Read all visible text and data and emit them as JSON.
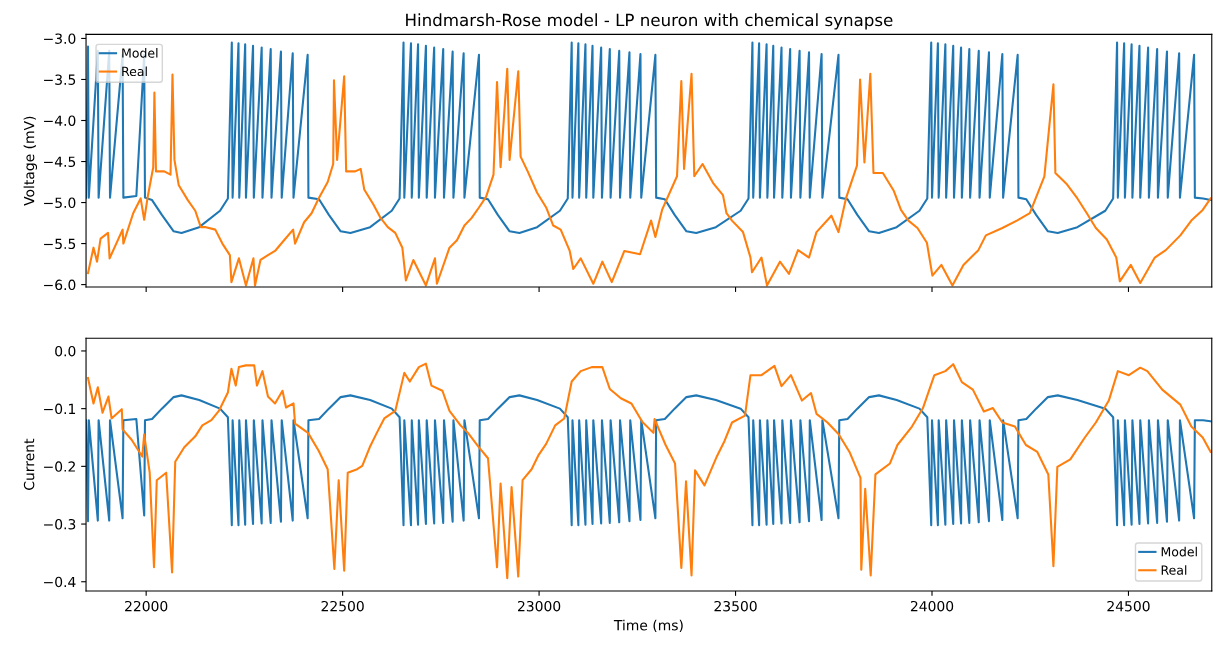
{
  "chart_data": [
    {
      "type": "line",
      "title": "Hindmarsh-Rose model - LP neuron with chemical synapse",
      "ylabel": "Voltage (mV)",
      "xlim": [
        21847,
        24712
      ],
      "xticks": [
        22000,
        22500,
        23000,
        23500,
        24000,
        24500
      ],
      "ylim": [
        -6.03,
        -2.95
      ],
      "yticks": [
        {
          "value": -6.0,
          "label": "−6.0"
        },
        {
          "value": -5.5,
          "label": "−5.5"
        },
        {
          "value": -5.0,
          "label": "−5.0"
        },
        {
          "value": -4.5,
          "label": "−4.5"
        },
        {
          "value": -4.0,
          "label": "−4.0"
        },
        {
          "value": -3.5,
          "label": "−3.5"
        },
        {
          "value": -3.0,
          "label": "−3.0"
        }
      ],
      "tick_labels": "y",
      "legend": "top left",
      "grid": false,
      "marker": "none",
      "line_style": "solid",
      "series": [
        {
          "name": "Model",
          "color": "#1f77b4",
          "x": [
            21847,
            21852,
            21854,
            21877,
            21879,
            21906,
            21908,
            21940,
            21942,
            21975,
            21995,
            21997,
            22015,
            22040,
            22070,
            22090,
            22135,
            22188,
            22208,
            22218,
            22220,
            22235,
            22237,
            22252,
            22254,
            22272,
            22274,
            22294,
            22296,
            22317,
            22319,
            22343,
            22345,
            22373,
            22375,
            22411,
            22413,
            22440,
            22465,
            22495,
            22520,
            22570,
            22625,
            22645,
            22655,
            22657,
            22674,
            22676,
            22692,
            22694,
            22712,
            22714,
            22733,
            22735,
            22756,
            22758,
            22780,
            22782,
            22808,
            22810,
            22847,
            22849,
            22870,
            22895,
            22925,
            22950,
            22995,
            23053,
            23073,
            23083,
            23085,
            23100,
            23102,
            23118,
            23120,
            23136,
            23138,
            23158,
            23160,
            23180,
            23182,
            23204,
            23206,
            23230,
            23232,
            23258,
            23260,
            23296,
            23298,
            23320,
            23345,
            23375,
            23400,
            23450,
            23513,
            23533,
            23543,
            23545,
            23560,
            23562,
            23579,
            23581,
            23596,
            23598,
            23617,
            23619,
            23639,
            23641,
            23663,
            23665,
            23687,
            23689,
            23719,
            23721,
            23762,
            23764,
            23785,
            23810,
            23840,
            23865,
            23910,
            23968,
            23988,
            23998,
            24000,
            24015,
            24017,
            24034,
            24036,
            24054,
            24056,
            24074,
            24076,
            24095,
            24097,
            24119,
            24121,
            24145,
            24147,
            24179,
            24181,
            24218,
            24220,
            24240,
            24265,
            24295,
            24320,
            24370,
            24441,
            24461,
            24471,
            24473,
            24489,
            24491,
            24508,
            24510,
            24528,
            24530,
            24550,
            24552,
            24573,
            24575,
            24598,
            24600,
            24629,
            24631,
            24667,
            24669,
            24690,
            24710
          ],
          "values": [
            -4.94,
            -3.1,
            -4.94,
            -3.15,
            -4.94,
            -3.15,
            -4.94,
            -3.2,
            -4.94,
            -4.92,
            -3.2,
            -4.94,
            -4.97,
            -5.15,
            -5.35,
            -5.37,
            -5.3,
            -5.1,
            -4.95,
            -3.05,
            -4.94,
            -3.06,
            -4.94,
            -3.07,
            -4.94,
            -3.09,
            -4.94,
            -3.11,
            -4.94,
            -3.13,
            -4.94,
            -3.16,
            -4.94,
            -3.18,
            -4.94,
            -3.2,
            -4.94,
            -4.96,
            -5.15,
            -5.35,
            -5.37,
            -5.3,
            -5.1,
            -4.95,
            -3.05,
            -4.94,
            -3.06,
            -4.94,
            -3.07,
            -4.94,
            -3.09,
            -4.94,
            -3.11,
            -4.94,
            -3.13,
            -4.94,
            -3.16,
            -4.94,
            -3.18,
            -4.94,
            -3.2,
            -4.94,
            -4.96,
            -5.15,
            -5.35,
            -5.37,
            -5.3,
            -5.1,
            -4.95,
            -3.05,
            -4.94,
            -3.06,
            -4.94,
            -3.07,
            -4.94,
            -3.09,
            -4.94,
            -3.11,
            -4.94,
            -3.13,
            -4.94,
            -3.15,
            -4.94,
            -3.17,
            -4.94,
            -3.19,
            -4.94,
            -3.2,
            -4.94,
            -4.96,
            -5.15,
            -5.35,
            -5.37,
            -5.3,
            -5.1,
            -4.95,
            -3.05,
            -4.94,
            -3.06,
            -4.94,
            -3.07,
            -4.94,
            -3.09,
            -4.94,
            -3.11,
            -4.94,
            -3.13,
            -4.94,
            -3.15,
            -4.94,
            -3.17,
            -4.94,
            -3.19,
            -4.94,
            -3.2,
            -4.94,
            -4.96,
            -5.15,
            -5.35,
            -5.37,
            -5.3,
            -5.1,
            -4.95,
            -3.05,
            -4.94,
            -3.06,
            -4.94,
            -3.07,
            -4.94,
            -3.09,
            -4.94,
            -3.11,
            -4.94,
            -3.13,
            -4.94,
            -3.15,
            -4.94,
            -3.17,
            -4.94,
            -3.19,
            -4.94,
            -3.2,
            -4.94,
            -4.96,
            -5.15,
            -5.35,
            -5.37,
            -5.3,
            -5.1,
            -4.95,
            -3.05,
            -4.94,
            -3.06,
            -4.94,
            -3.07,
            -4.94,
            -3.09,
            -4.94,
            -3.11,
            -4.94,
            -3.13,
            -4.94,
            -3.16,
            -4.94,
            -3.18,
            -4.94,
            -3.2,
            -4.94,
            -4.95,
            -4.97
          ]
        },
        {
          "name": "Real",
          "color": "#ff7f0e",
          "x": [
            21852,
            21866,
            21875,
            21884,
            21903,
            21907,
            21940,
            21942,
            21967,
            21986,
            21995,
            22004,
            22018,
            22021,
            22025,
            22046,
            22062,
            22067,
            22072,
            22083,
            22106,
            22125,
            22139,
            22152,
            22176,
            22194,
            22213,
            22217,
            22236,
            22254,
            22273,
            22277,
            22291,
            22310,
            22328,
            22351,
            22374,
            22379,
            22402,
            22421,
            22439,
            22462,
            22476,
            22478,
            22486,
            22504,
            22509,
            22532,
            22546,
            22555,
            22578,
            22597,
            22615,
            22634,
            22652,
            22661,
            22680,
            22712,
            22735,
            22740,
            22772,
            22791,
            22810,
            22828,
            22847,
            22865,
            22884,
            22893,
            22902,
            22919,
            22925,
            22947,
            22953,
            22971,
            22995,
            23018,
            23036,
            23055,
            23078,
            23087,
            23106,
            23138,
            23161,
            23185,
            23217,
            23257,
            23285,
            23296,
            23313,
            23351,
            23362,
            23369,
            23388,
            23395,
            23416,
            23444,
            23468,
            23477,
            23491,
            23519,
            23538,
            23542,
            23566,
            23580,
            23613,
            23636,
            23659,
            23687,
            23706,
            23744,
            23762,
            23781,
            23809,
            23817,
            23828,
            23843,
            23851,
            23875,
            23903,
            23921,
            23940,
            23963,
            23987,
            24001,
            24024,
            24052,
            24080,
            24118,
            24137,
            24179,
            24216,
            24249,
            24286,
            24309,
            24314,
            24342,
            24370,
            24394,
            24417,
            24445,
            24469,
            24478,
            24506,
            24530,
            24567,
            24595,
            24632,
            24660,
            24689,
            24709
          ],
          "values": [
            -5.86,
            -5.55,
            -5.72,
            -5.44,
            -5.37,
            -5.68,
            -5.33,
            -5.5,
            -5.13,
            -4.95,
            -5.21,
            -4.93,
            -4.57,
            -3.66,
            -4.62,
            -4.62,
            -4.66,
            -3.44,
            -4.48,
            -4.79,
            -4.97,
            -5.1,
            -5.3,
            -5.3,
            -5.33,
            -5.5,
            -5.64,
            -5.97,
            -5.68,
            -6.01,
            -5.68,
            -6.01,
            -5.7,
            -5.64,
            -5.59,
            -5.46,
            -5.33,
            -5.5,
            -5.24,
            -5.13,
            -4.95,
            -4.75,
            -4.53,
            -3.51,
            -4.48,
            -3.46,
            -4.62,
            -4.62,
            -4.59,
            -4.84,
            -5.02,
            -5.19,
            -5.3,
            -5.37,
            -5.55,
            -5.95,
            -5.7,
            -6.01,
            -5.68,
            -5.99,
            -5.55,
            -5.46,
            -5.28,
            -5.19,
            -5.06,
            -4.93,
            -4.66,
            -3.53,
            -4.57,
            -3.37,
            -4.48,
            -3.4,
            -4.44,
            -4.62,
            -4.88,
            -5.06,
            -5.28,
            -5.33,
            -5.59,
            -5.81,
            -5.68,
            -5.99,
            -5.72,
            -5.97,
            -5.59,
            -5.63,
            -5.22,
            -5.42,
            -5.09,
            -4.68,
            -3.52,
            -4.59,
            -3.43,
            -4.68,
            -4.53,
            -4.77,
            -4.91,
            -5.13,
            -5.22,
            -5.36,
            -5.67,
            -5.85,
            -5.67,
            -6.01,
            -5.72,
            -5.87,
            -5.58,
            -5.67,
            -5.36,
            -5.16,
            -5.36,
            -4.95,
            -4.55,
            -3.5,
            -4.51,
            -3.43,
            -4.64,
            -4.64,
            -4.86,
            -5.09,
            -5.22,
            -5.31,
            -5.49,
            -5.89,
            -5.76,
            -6.01,
            -5.76,
            -5.58,
            -5.4,
            -5.31,
            -5.22,
            -5.13,
            -4.68,
            -3.56,
            -4.64,
            -4.77,
            -4.95,
            -5.13,
            -5.31,
            -5.45,
            -5.67,
            -5.96,
            -5.76,
            -5.98,
            -5.67,
            -5.58,
            -5.4,
            -5.22,
            -5.09,
            -4.95
          ]
        }
      ]
    },
    {
      "type": "line",
      "xlabel": "Time (ms)",
      "ylabel": "Current",
      "xlim": [
        21847,
        24712
      ],
      "xticks": [
        22000,
        22500,
        23000,
        23500,
        24000,
        24500
      ],
      "ylim": [
        -0.416,
        0.022
      ],
      "yticks": [
        {
          "value": -0.4,
          "label": "−0.4"
        },
        {
          "value": -0.3,
          "label": "−0.3"
        },
        {
          "value": -0.2,
          "label": "−0.2"
        },
        {
          "value": -0.1,
          "label": "−0.1"
        },
        {
          "value": 0.0,
          "label": "0.0"
        }
      ],
      "legend": "bottom right",
      "grid": false,
      "marker": "none",
      "line_style": "solid",
      "series": [
        {
          "name": "Model",
          "color": "#1f77b4",
          "x": [
            21847,
            21852,
            21854,
            21877,
            21879,
            21906,
            21908,
            21940,
            21942,
            21975,
            21995,
            21997,
            22015,
            22040,
            22070,
            22090,
            22135,
            22188,
            22208,
            22218,
            22220,
            22235,
            22237,
            22252,
            22254,
            22272,
            22274,
            22294,
            22296,
            22317,
            22319,
            22343,
            22345,
            22373,
            22375,
            22411,
            22413,
            22440,
            22465,
            22495,
            22520,
            22570,
            22625,
            22645,
            22655,
            22657,
            22674,
            22676,
            22692,
            22694,
            22712,
            22714,
            22733,
            22735,
            22756,
            22758,
            22780,
            22782,
            22808,
            22810,
            22847,
            22849,
            22870,
            22895,
            22925,
            22950,
            22995,
            23053,
            23073,
            23083,
            23085,
            23100,
            23102,
            23118,
            23120,
            23136,
            23138,
            23158,
            23160,
            23180,
            23182,
            23204,
            23206,
            23230,
            23232,
            23258,
            23260,
            23296,
            23298,
            23320,
            23345,
            23375,
            23400,
            23450,
            23513,
            23533,
            23543,
            23545,
            23560,
            23562,
            23579,
            23581,
            23596,
            23598,
            23617,
            23619,
            23639,
            23641,
            23663,
            23665,
            23687,
            23689,
            23719,
            23721,
            23762,
            23764,
            23785,
            23810,
            23840,
            23865,
            23910,
            23968,
            23988,
            23998,
            24000,
            24015,
            24017,
            24034,
            24036,
            24054,
            24056,
            24074,
            24076,
            24095,
            24097,
            24119,
            24121,
            24145,
            24147,
            24179,
            24181,
            24218,
            24220,
            24240,
            24265,
            24295,
            24320,
            24370,
            24441,
            24461,
            24471,
            24473,
            24489,
            24491,
            24508,
            24510,
            24528,
            24530,
            24550,
            24552,
            24573,
            24575,
            24598,
            24600,
            24629,
            24631,
            24667,
            24669,
            24690,
            24710
          ],
          "values": [
            -0.12,
            -0.295,
            -0.12,
            -0.294,
            -0.12,
            -0.294,
            -0.12,
            -0.29,
            -0.12,
            -0.118,
            -0.285,
            -0.12,
            -0.118,
            -0.1,
            -0.08,
            -0.077,
            -0.085,
            -0.1,
            -0.115,
            -0.302,
            -0.12,
            -0.302,
            -0.12,
            -0.301,
            -0.12,
            -0.3,
            -0.12,
            -0.299,
            -0.12,
            -0.298,
            -0.12,
            -0.296,
            -0.12,
            -0.294,
            -0.12,
            -0.29,
            -0.12,
            -0.118,
            -0.1,
            -0.08,
            -0.077,
            -0.085,
            -0.1,
            -0.115,
            -0.302,
            -0.12,
            -0.302,
            -0.12,
            -0.301,
            -0.12,
            -0.3,
            -0.12,
            -0.299,
            -0.12,
            -0.298,
            -0.12,
            -0.296,
            -0.12,
            -0.294,
            -0.12,
            -0.29,
            -0.12,
            -0.118,
            -0.1,
            -0.08,
            -0.077,
            -0.085,
            -0.1,
            -0.115,
            -0.302,
            -0.12,
            -0.302,
            -0.12,
            -0.301,
            -0.12,
            -0.3,
            -0.12,
            -0.299,
            -0.12,
            -0.298,
            -0.12,
            -0.297,
            -0.12,
            -0.295,
            -0.12,
            -0.293,
            -0.12,
            -0.29,
            -0.12,
            -0.118,
            -0.1,
            -0.08,
            -0.077,
            -0.085,
            -0.1,
            -0.115,
            -0.302,
            -0.12,
            -0.302,
            -0.12,
            -0.301,
            -0.12,
            -0.3,
            -0.12,
            -0.299,
            -0.12,
            -0.298,
            -0.12,
            -0.297,
            -0.12,
            -0.295,
            -0.12,
            -0.293,
            -0.12,
            -0.29,
            -0.12,
            -0.118,
            -0.1,
            -0.08,
            -0.077,
            -0.085,
            -0.1,
            -0.115,
            -0.302,
            -0.12,
            -0.302,
            -0.12,
            -0.301,
            -0.12,
            -0.3,
            -0.12,
            -0.299,
            -0.12,
            -0.298,
            -0.12,
            -0.297,
            -0.12,
            -0.295,
            -0.12,
            -0.293,
            -0.12,
            -0.29,
            -0.12,
            -0.118,
            -0.1,
            -0.08,
            -0.077,
            -0.085,
            -0.1,
            -0.115,
            -0.302,
            -0.12,
            -0.302,
            -0.12,
            -0.301,
            -0.12,
            -0.3,
            -0.12,
            -0.299,
            -0.12,
            -0.298,
            -0.12,
            -0.296,
            -0.12,
            -0.294,
            -0.12,
            -0.29,
            -0.12,
            -0.12,
            -0.122
          ]
        },
        {
          "name": "Real",
          "color": "#ff7f0e",
          "x": [
            21852,
            21866,
            21877,
            21889,
            21904,
            21912,
            21938,
            21940,
            21963,
            21990,
            21995,
            22009,
            22020,
            22027,
            22051,
            22066,
            22074,
            22097,
            22125,
            22143,
            22166,
            22185,
            22208,
            22217,
            22228,
            22236,
            22254,
            22275,
            22282,
            22296,
            22310,
            22328,
            22347,
            22356,
            22375,
            22379,
            22412,
            22439,
            22462,
            22479,
            22490,
            22504,
            22513,
            22537,
            22550,
            22569,
            22587,
            22606,
            22634,
            22657,
            22671,
            22694,
            22712,
            22726,
            22754,
            22772,
            22800,
            22819,
            22847,
            22870,
            22893,
            22902,
            22919,
            22930,
            22947,
            22958,
            22981,
            22999,
            23018,
            23041,
            23064,
            23083,
            23106,
            23134,
            23161,
            23180,
            23208,
            23235,
            23263,
            23291,
            23294,
            23322,
            23346,
            23362,
            23374,
            23388,
            23397,
            23421,
            23453,
            23472,
            23491,
            23524,
            23538,
            23566,
            23599,
            23617,
            23641,
            23669,
            23692,
            23706,
            23734,
            23762,
            23790,
            23818,
            23820,
            23830,
            23844,
            23856,
            23893,
            23912,
            23949,
            23977,
            24006,
            24034,
            24054,
            24076,
            24104,
            24132,
            24155,
            24179,
            24211,
            24239,
            24268,
            24296,
            24309,
            24319,
            24352,
            24389,
            24417,
            24450,
            24473,
            24501,
            24530,
            24548,
            24586,
            24632,
            24660,
            24689,
            24709
          ],
          "values": [
            -0.047,
            -0.091,
            -0.063,
            -0.107,
            -0.079,
            -0.117,
            -0.101,
            -0.136,
            -0.154,
            -0.183,
            -0.145,
            -0.211,
            -0.375,
            -0.224,
            -0.211,
            -0.384,
            -0.192,
            -0.167,
            -0.148,
            -0.129,
            -0.12,
            -0.104,
            -0.072,
            -0.031,
            -0.06,
            -0.028,
            -0.025,
            -0.025,
            -0.06,
            -0.035,
            -0.079,
            -0.091,
            -0.069,
            -0.098,
            -0.091,
            -0.126,
            -0.142,
            -0.173,
            -0.205,
            -0.378,
            -0.224,
            -0.381,
            -0.211,
            -0.205,
            -0.199,
            -0.167,
            -0.142,
            -0.117,
            -0.104,
            -0.038,
            -0.053,
            -0.028,
            -0.022,
            -0.06,
            -0.069,
            -0.104,
            -0.129,
            -0.142,
            -0.167,
            -0.186,
            -0.375,
            -0.23,
            -0.394,
            -0.236,
            -0.391,
            -0.224,
            -0.205,
            -0.18,
            -0.161,
            -0.129,
            -0.117,
            -0.053,
            -0.035,
            -0.028,
            -0.028,
            -0.066,
            -0.082,
            -0.091,
            -0.123,
            -0.142,
            -0.118,
            -0.163,
            -0.195,
            -0.376,
            -0.226,
            -0.389,
            -0.207,
            -0.233,
            -0.182,
            -0.156,
            -0.124,
            -0.112,
            -0.042,
            -0.042,
            -0.026,
            -0.061,
            -0.042,
            -0.086,
            -0.073,
            -0.109,
            -0.124,
            -0.144,
            -0.175,
            -0.22,
            -0.379,
            -0.239,
            -0.389,
            -0.214,
            -0.195,
            -0.163,
            -0.131,
            -0.099,
            -0.042,
            -0.035,
            -0.023,
            -0.054,
            -0.067,
            -0.105,
            -0.099,
            -0.124,
            -0.131,
            -0.163,
            -0.175,
            -0.214,
            -0.373,
            -0.201,
            -0.188,
            -0.15,
            -0.124,
            -0.086,
            -0.035,
            -0.042,
            -0.029,
            -0.035,
            -0.067,
            -0.093,
            -0.131,
            -0.15,
            -0.175
          ]
        }
      ]
    }
  ]
}
